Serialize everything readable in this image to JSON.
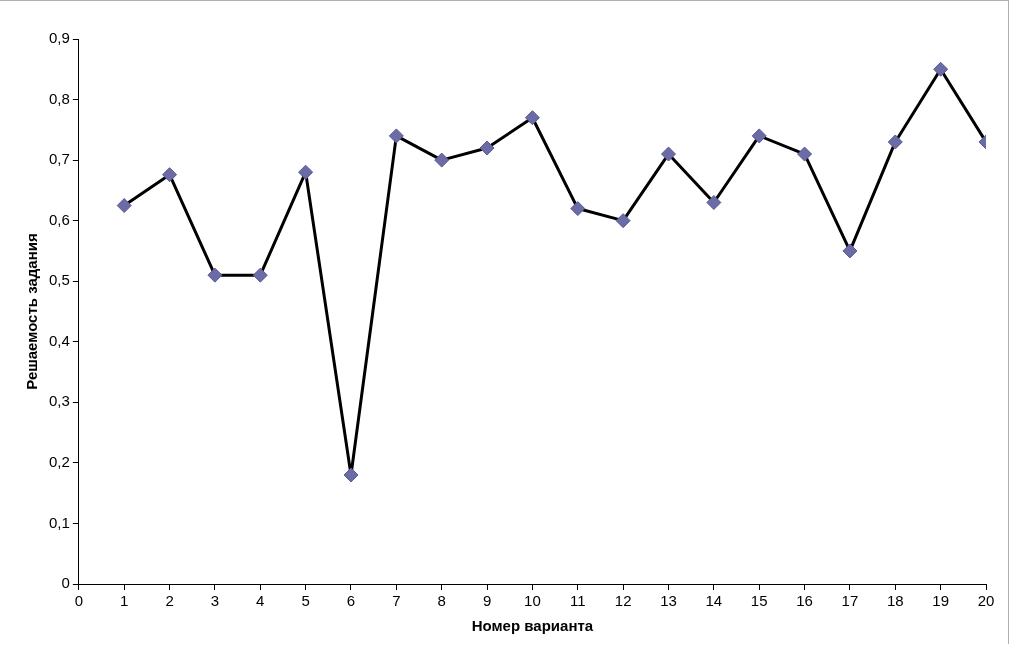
{
  "chart_data": {
    "type": "line",
    "xlabel": "Номер варианта",
    "ylabel": "Решаемость задания",
    "x": [
      1,
      2,
      3,
      4,
      5,
      6,
      7,
      8,
      9,
      10,
      11,
      12,
      13,
      14,
      15,
      16,
      17,
      18,
      19,
      20
    ],
    "series": [
      {
        "color": "#000000",
        "values": [
          0.625,
          0.676,
          0.51,
          0.51,
          0.68,
          0.18,
          0.74,
          0.7,
          0.72,
          0.77,
          0.62,
          0.6,
          0.71,
          0.63,
          0.74,
          0.71,
          0.55,
          0.73,
          0.85,
          0.73
        ]
      }
    ],
    "marker": "diamond",
    "line_style": "solid",
    "grid": false,
    "legend": false,
    "xlim": [
      0,
      20
    ],
    "xticks": [
      0,
      1,
      2,
      3,
      4,
      5,
      6,
      7,
      8,
      9,
      10,
      11,
      12,
      13,
      14,
      15,
      16,
      17,
      18,
      19,
      20
    ],
    "ylim": [
      0,
      0.9
    ],
    "yticks": [
      0,
      {
        "value": 0.1,
        "label": "0,1"
      },
      {
        "value": 0.2,
        "label": "0,2"
      },
      {
        "value": 0.3,
        "label": "0,3"
      },
      {
        "value": 0.4,
        "label": "0,4"
      },
      {
        "value": 0.5,
        "label": "0,5"
      },
      {
        "value": 0.6,
        "label": "0,6"
      },
      {
        "value": 0.7,
        "label": "0,7"
      },
      {
        "value": 0.8,
        "label": "0,8"
      },
      {
        "value": 0.9,
        "label": "0,9"
      }
    ]
  }
}
